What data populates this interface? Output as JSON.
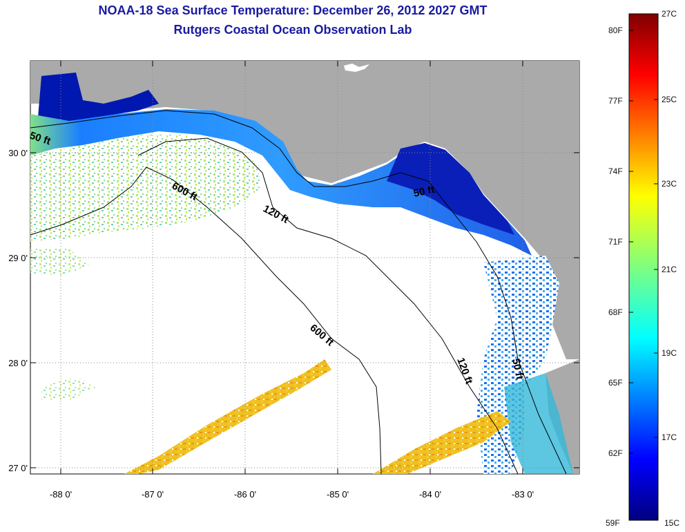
{
  "header": {
    "title": "NOAA-18 Sea Surface Temperature:  December 26, 2012 2027 GMT",
    "subtitle": "Rutgers Coastal Ocean Observation Lab"
  },
  "map": {
    "lat_labels": [
      "30 0'",
      "29 0'",
      "28 0'",
      "27 0'"
    ],
    "lon_labels": [
      "-88 0'",
      "-87 0'",
      "-86 0'",
      "-85 0'",
      "-84 0'",
      "-83 0'"
    ],
    "contour_labels": [
      "50 ft",
      "600 ft",
      "120 ft",
      "50 ft",
      "600 ft",
      "120 ft",
      "50 ft"
    ],
    "colors": {
      "land": "#aaaaaa",
      "ocean_nodata": "#ffffff"
    }
  },
  "colorbar": {
    "fahrenheit": [
      "80F",
      "77F",
      "74F",
      "71F",
      "68F",
      "65F",
      "62F",
      "59F"
    ],
    "celsius": [
      "27C",
      "25C",
      "23C",
      "21C",
      "19C",
      "17C",
      "15C"
    ],
    "top_color": "#7f0000",
    "bottom_color": "#00007f"
  }
}
